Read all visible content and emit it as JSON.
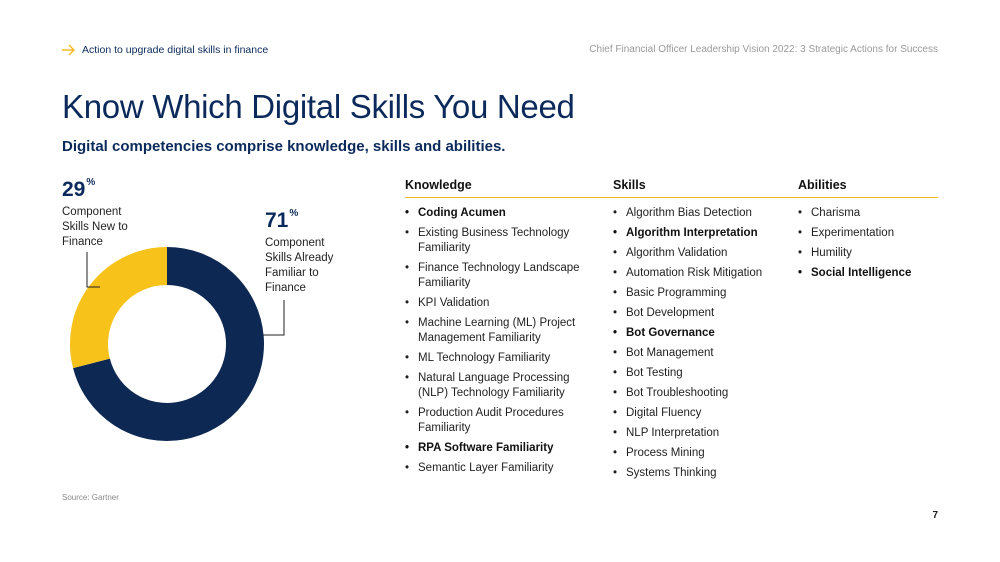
{
  "header": {
    "breadcrumb": "Action to upgrade digital skills in finance",
    "document_title": "Chief Financial Officer Leadership Vision 2022: 3 Strategic Actions for Success"
  },
  "title": "Know Which Digital Skills You Need",
  "subtitle": "Digital competencies comprise knowledge, skills and abilities.",
  "chart_data": {
    "type": "pie",
    "categories": [
      "Component Skills New to Finance",
      "Component Skills Already Familiar to Finance"
    ],
    "values": [
      29,
      71
    ],
    "value_labels": [
      "29",
      "71"
    ],
    "unit": "%",
    "colors": [
      "#f7c21a",
      "#0d2852"
    ]
  },
  "columns": [
    {
      "heading": "Knowledge",
      "items": [
        {
          "text": "Coding Acumen",
          "bold": true
        },
        {
          "text": "Existing Business Technology Familiarity",
          "bold": false
        },
        {
          "text": "Finance Technology Landscape Familiarity",
          "bold": false
        },
        {
          "text": "KPI Validation",
          "bold": false
        },
        {
          "text": "Machine Learning (ML) Project Management Familiarity",
          "bold": false
        },
        {
          "text": "ML Technology Familiarity",
          "bold": false
        },
        {
          "text": "Natural Language Processing (NLP) Technology Familiarity",
          "bold": false
        },
        {
          "text": "Production Audit Procedures Familiarity",
          "bold": false
        },
        {
          "text": "RPA Software Familiarity",
          "bold": true
        },
        {
          "text": "Semantic Layer Familiarity",
          "bold": false
        }
      ]
    },
    {
      "heading": "Skills",
      "items": [
        {
          "text": "Algorithm Bias Detection",
          "bold": false
        },
        {
          "text": "Algorithm Interpretation",
          "bold": true
        },
        {
          "text": "Algorithm Validation",
          "bold": false
        },
        {
          "text": "Automation Risk Mitigation",
          "bold": false
        },
        {
          "text": "Basic Programming",
          "bold": false
        },
        {
          "text": "Bot Development",
          "bold": false
        },
        {
          "text": "Bot Governance",
          "bold": true
        },
        {
          "text": "Bot Management",
          "bold": false
        },
        {
          "text": "Bot Testing",
          "bold": false
        },
        {
          "text": "Bot Troubleshooting",
          "bold": false
        },
        {
          "text": "Digital Fluency",
          "bold": false
        },
        {
          "text": "NLP Interpretation",
          "bold": false
        },
        {
          "text": "Process Mining",
          "bold": false
        },
        {
          "text": "Systems Thinking",
          "bold": false
        }
      ]
    },
    {
      "heading": "Abilities",
      "items": [
        {
          "text": "Charisma",
          "bold": false
        },
        {
          "text": "Experimentation",
          "bold": false
        },
        {
          "text": "Humility",
          "bold": false
        },
        {
          "text": "Social Intelligence",
          "bold": true
        }
      ]
    }
  ],
  "footer": {
    "source": "Source: Gartner",
    "page_number": "7"
  }
}
